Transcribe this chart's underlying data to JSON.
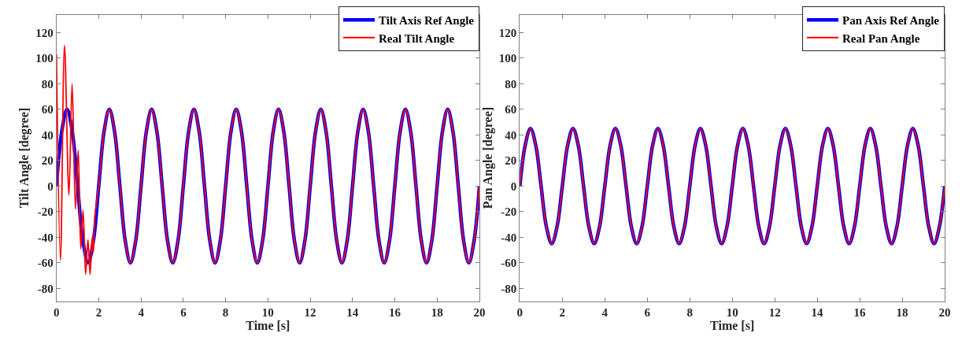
{
  "chart_data": [
    {
      "type": "line",
      "xlabel": "Time [s]",
      "ylabel": "Tilt Angle [degree]",
      "xlim": [
        0,
        20
      ],
      "ylim": [
        -90,
        134
      ],
      "xticks": [
        0,
        2,
        4,
        6,
        8,
        10,
        12,
        14,
        16,
        18,
        20
      ],
      "yticks": [
        -80,
        -60,
        -40,
        -20,
        0,
        20,
        40,
        60,
        80,
        100,
        120
      ],
      "legend": "top right",
      "x": [
        0,
        0.25,
        0.5,
        0.75,
        1,
        1.25,
        1.5,
        1.75,
        2,
        2.25,
        2.5,
        2.75,
        3,
        3.25,
        3.5,
        3.75,
        4,
        4.25,
        4.5,
        4.75,
        5,
        5.25,
        5.5,
        5.75,
        6,
        6.25,
        6.5,
        6.75,
        7,
        7.25,
        7.5,
        7.75,
        8,
        8.25,
        8.5,
        8.75,
        9,
        9.25,
        9.5,
        9.75,
        10,
        10.25,
        10.5,
        10.75,
        11,
        11.25,
        11.5,
        11.75,
        12,
        12.25,
        12.5,
        12.75,
        13,
        13.25,
        13.5,
        13.75,
        14,
        14.25,
        14.5,
        14.75,
        15,
        15.25,
        15.5,
        15.75,
        16,
        16.25,
        16.5,
        16.75,
        17,
        17.25,
        17.5,
        17.75,
        18,
        18.25,
        18.5,
        18.75,
        19,
        19.25,
        19.5,
        19.75,
        20
      ],
      "series": [
        {
          "name": "Tilt Axis Ref Angle",
          "color": "#0000ff",
          "values": [
            0,
            42.4,
            60,
            42.4,
            0,
            -42.4,
            -60,
            -42.4,
            0,
            42.4,
            60,
            42.4,
            0,
            -42.4,
            -60,
            -42.4,
            0,
            42.4,
            60,
            42.4,
            0,
            -42.4,
            -60,
            -42.4,
            0,
            42.4,
            60,
            42.4,
            0,
            -42.4,
            -60,
            -42.4,
            0,
            42.4,
            60,
            42.4,
            0,
            -42.4,
            -60,
            -42.4,
            0,
            42.4,
            60,
            42.4,
            0,
            -42.4,
            -60,
            -42.4,
            0,
            42.4,
            60,
            42.4,
            0,
            -42.4,
            -60,
            -42.4,
            0,
            42.4,
            60,
            42.4,
            0,
            -42.4,
            -60,
            -42.4,
            0,
            42.4,
            60,
            42.4,
            0,
            -42.4,
            -60,
            -42.4,
            0,
            42.4,
            60,
            42.4,
            0,
            -42.4,
            -60,
            -42.4,
            0
          ]
        },
        {
          "name": "Real Tilt Angle",
          "color": "#ff0000",
          "x": [
            0,
            0.19,
            0.38,
            0.59,
            0.74,
            0.9,
            1.03,
            1.15,
            1.26,
            1.38,
            1.49,
            1.59,
            1.69,
            1.74,
            1.81,
            2,
            2.25,
            2.5,
            2.75,
            3,
            3.25,
            3.5,
            3.75,
            4,
            4.25,
            4.5,
            4.75,
            5,
            5.25,
            5.5,
            5.75,
            6,
            6.25,
            6.5,
            6.75,
            7,
            7.25,
            7.5,
            7.75,
            8,
            8.25,
            8.5,
            8.75,
            9,
            9.25,
            9.5,
            9.75,
            10,
            10.25,
            10.5,
            10.75,
            11,
            11.25,
            11.5,
            11.75,
            12,
            12.25,
            12.5,
            12.75,
            13,
            13.25,
            13.5,
            13.75,
            14,
            14.25,
            14.5,
            14.75,
            15,
            15.25,
            15.5,
            15.75,
            16,
            16.25,
            16.5,
            16.75,
            17,
            17.25,
            17.5,
            17.75,
            18,
            18.25,
            18.5,
            18.75,
            19,
            19.25,
            19.5,
            19.75,
            20
          ],
          "values": [
            103,
            -58,
            110,
            -7,
            80,
            -18,
            28,
            -49,
            -19,
            -69,
            -42,
            -69,
            -40,
            -52,
            -25,
            0,
            42.4,
            60,
            42.4,
            0,
            -42.4,
            -60,
            -42.4,
            0,
            42.4,
            60,
            42.4,
            0,
            -42.4,
            -60,
            -42.4,
            0,
            42.4,
            60,
            42.4,
            0,
            -42.4,
            -60,
            -42.4,
            0,
            42.4,
            60,
            42.4,
            0,
            -42.4,
            -60,
            -42.4,
            0,
            42.4,
            60,
            42.4,
            0,
            -42.4,
            -60,
            -42.4,
            0,
            42.4,
            60,
            42.4,
            0,
            -42.4,
            -60,
            -42.4,
            0,
            42.4,
            60,
            42.4,
            0,
            -42.4,
            -60,
            -42.4,
            0,
            42.4,
            60,
            42.4,
            0,
            -42.4,
            -60,
            -42.4,
            0,
            42.4,
            60,
            42.4,
            0,
            -42.4,
            -60,
            -42.4,
            0
          ]
        }
      ]
    },
    {
      "type": "line",
      "xlabel": "Time [s]",
      "ylabel": "Pan Angle [degree]",
      "xlim": [
        0,
        20
      ],
      "ylim": [
        -90,
        134
      ],
      "xticks": [
        0,
        2,
        4,
        6,
        8,
        10,
        12,
        14,
        16,
        18,
        20
      ],
      "yticks": [
        -80,
        -60,
        -40,
        -20,
        0,
        20,
        40,
        60,
        80,
        100,
        120
      ],
      "legend": "top right",
      "x": [
        0,
        0.25,
        0.5,
        0.75,
        1,
        1.25,
        1.5,
        1.75,
        2,
        2.25,
        2.5,
        2.75,
        3,
        3.25,
        3.5,
        3.75,
        4,
        4.25,
        4.5,
        4.75,
        5,
        5.25,
        5.5,
        5.75,
        6,
        6.25,
        6.5,
        6.75,
        7,
        7.25,
        7.5,
        7.75,
        8,
        8.25,
        8.5,
        8.75,
        9,
        9.25,
        9.5,
        9.75,
        10,
        10.25,
        10.5,
        10.75,
        11,
        11.25,
        11.5,
        11.75,
        12,
        12.25,
        12.5,
        12.75,
        13,
        13.25,
        13.5,
        13.75,
        14,
        14.25,
        14.5,
        14.75,
        15,
        15.25,
        15.5,
        15.75,
        16,
        16.25,
        16.5,
        16.75,
        17,
        17.25,
        17.5,
        17.75,
        18,
        18.25,
        18.5,
        18.75,
        19,
        19.25,
        19.5,
        19.75,
        20
      ],
      "series": [
        {
          "name": "Pan Axis Ref Angle",
          "color": "#0000ff",
          "values": [
            0,
            31.8,
            45,
            31.8,
            0,
            -31.8,
            -45,
            -31.8,
            0,
            31.8,
            45,
            31.8,
            0,
            -31.8,
            -45,
            -31.8,
            0,
            31.8,
            45,
            31.8,
            0,
            -31.8,
            -45,
            -31.8,
            0,
            31.8,
            45,
            31.8,
            0,
            -31.8,
            -45,
            -31.8,
            0,
            31.8,
            45,
            31.8,
            0,
            -31.8,
            -45,
            -31.8,
            0,
            31.8,
            45,
            31.8,
            0,
            -31.8,
            -45,
            -31.8,
            0,
            31.8,
            45,
            31.8,
            0,
            -31.8,
            -45,
            -31.8,
            0,
            31.8,
            45,
            31.8,
            0,
            -31.8,
            -45,
            -31.8,
            0,
            31.8,
            45,
            31.8,
            0,
            -31.8,
            -45,
            -31.8,
            0,
            31.8,
            45,
            31.8,
            0,
            -31.8,
            -45,
            -31.8,
            0
          ]
        },
        {
          "name": "Real Pan Angle",
          "color": "#ff0000",
          "values": [
            0,
            31.8,
            45,
            31.8,
            0,
            -31.8,
            -45,
            -31.8,
            0,
            31.8,
            45,
            31.8,
            0,
            -31.8,
            -45,
            -31.8,
            0,
            31.8,
            45,
            31.8,
            0,
            -31.8,
            -45,
            -31.8,
            0,
            31.8,
            45,
            31.8,
            0,
            -31.8,
            -45,
            -31.8,
            0,
            31.8,
            45,
            31.8,
            0,
            -31.8,
            -45,
            -31.8,
            0,
            31.8,
            45,
            31.8,
            0,
            -31.8,
            -45,
            -31.8,
            0,
            31.8,
            45,
            31.8,
            0,
            -31.8,
            -45,
            -31.8,
            0,
            31.8,
            45,
            31.8,
            0,
            -31.8,
            -45,
            -31.8,
            0,
            31.8,
            45,
            31.8,
            0,
            -31.8,
            -45,
            -31.8,
            0,
            31.8,
            45,
            31.8,
            0,
            -31.8,
            -45,
            -31.8,
            0
          ]
        }
      ]
    }
  ]
}
